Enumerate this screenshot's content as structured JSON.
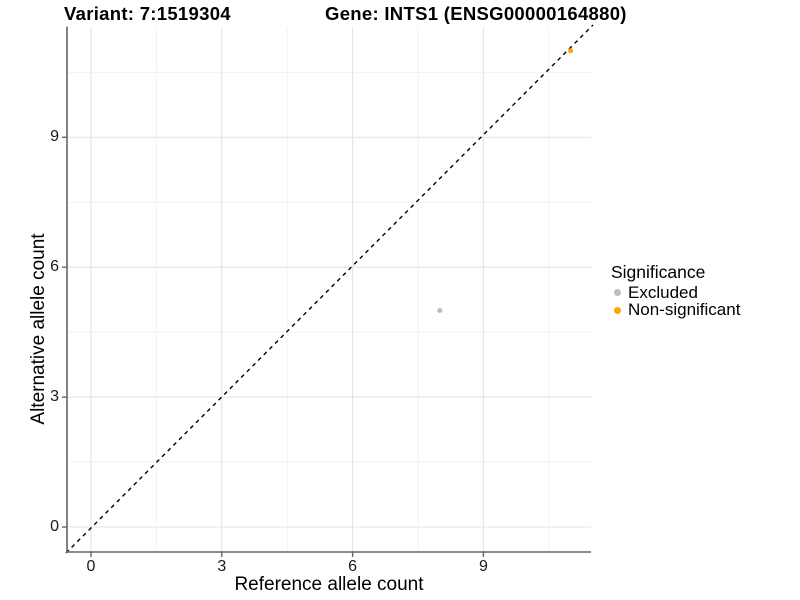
{
  "titles": {
    "variant": "Variant: 7:1519304",
    "gene": "Gene: INTS1 (ENSG00000164880)"
  },
  "axes": {
    "x_label": "Reference allele count",
    "y_label": "Alternative allele count"
  },
  "legend": {
    "title": "Significance",
    "items": [
      {
        "label": "Excluded",
        "color": "#bdbdbd"
      },
      {
        "label": "Non-significant",
        "color": "#ffa500"
      }
    ]
  },
  "chart_data": {
    "type": "scatter",
    "title": "Variant: 7:1519304 — Gene: INTS1 (ENSG00000164880)",
    "xlabel": "Reference allele count",
    "ylabel": "Alternative allele count",
    "xlim": [
      -0.55,
      11.55
    ],
    "ylim": [
      -0.55,
      11.55
    ],
    "x_ticks": [
      0,
      3,
      6,
      9
    ],
    "y_ticks": [
      0,
      3,
      6,
      9
    ],
    "x_minor": [
      1.5,
      4.5,
      7.5,
      10.5
    ],
    "y_minor": [
      1.5,
      4.5,
      7.5,
      10.5
    ],
    "grid": true,
    "legend_position": "right",
    "grid_major_color": "#e4e4e4",
    "grid_minor_color": "#f1f1f1",
    "axis_color": "#666666",
    "series": [
      {
        "name": "Excluded",
        "color": "#bdbdbd",
        "points": [
          [
            8,
            5
          ]
        ]
      },
      {
        "name": "Non-significant",
        "color": "#ffa500",
        "points": [
          [
            11,
            11
          ]
        ]
      }
    ],
    "reference_line": {
      "type": "identity",
      "slope": 1,
      "intercept": 0,
      "style": "dashed",
      "color": "#000000"
    }
  }
}
